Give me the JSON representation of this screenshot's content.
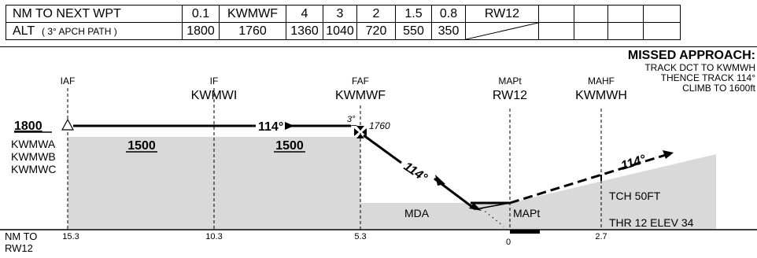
{
  "table": {
    "row1": {
      "label": "NM TO NEXT WPT",
      "cells": [
        "0.1",
        "KWMWF",
        "4",
        "3",
        "2",
        "1.5",
        "0.8",
        "RW12",
        "",
        "",
        "",
        ""
      ]
    },
    "row2": {
      "label": "ALT",
      "label_sub": "( 3° APCH PATH )",
      "cells": [
        "1800",
        "1760",
        "1360",
        "1040",
        "720",
        "550",
        "350",
        "",
        "",
        "",
        "",
        ""
      ]
    }
  },
  "missed": {
    "title": "MISSED APPROACH:",
    "lines": [
      "TRACK DCT TO KWMWH",
      "THENCE TRACK 114°",
      "CLIMB TO 1600ft"
    ]
  },
  "fixes": [
    {
      "role": "IAF",
      "name": ""
    },
    {
      "role": "IF",
      "name": "KWMWI"
    },
    {
      "role": "FAF",
      "name": "KWMWF"
    },
    {
      "role": "MAPt",
      "name": "RW12"
    },
    {
      "role": "MAHF",
      "name": "KWMWH"
    }
  ],
  "profile": {
    "iaf_alt": "1800",
    "iaf_waypoints": [
      "KWMWA",
      "KWMWB",
      "KWMWC"
    ],
    "seg1_alt": "1500",
    "seg2_alt": "1500",
    "track_label": "114°",
    "final_track_label": "114°",
    "missed_track_label": "114°",
    "glidepath_angle": "3°",
    "faf_alt": "1760",
    "mda_label": "MDA",
    "mapt_label": "MAPt",
    "tch_label": "TCH 50FT",
    "thr_label": "THR 12 ELEV 34"
  },
  "distances": {
    "axis_label_line1": "NM TO",
    "axis_label_line2": "RW12",
    "values": [
      "15.3",
      "10.3",
      "5.3",
      "0",
      "2.7"
    ]
  }
}
